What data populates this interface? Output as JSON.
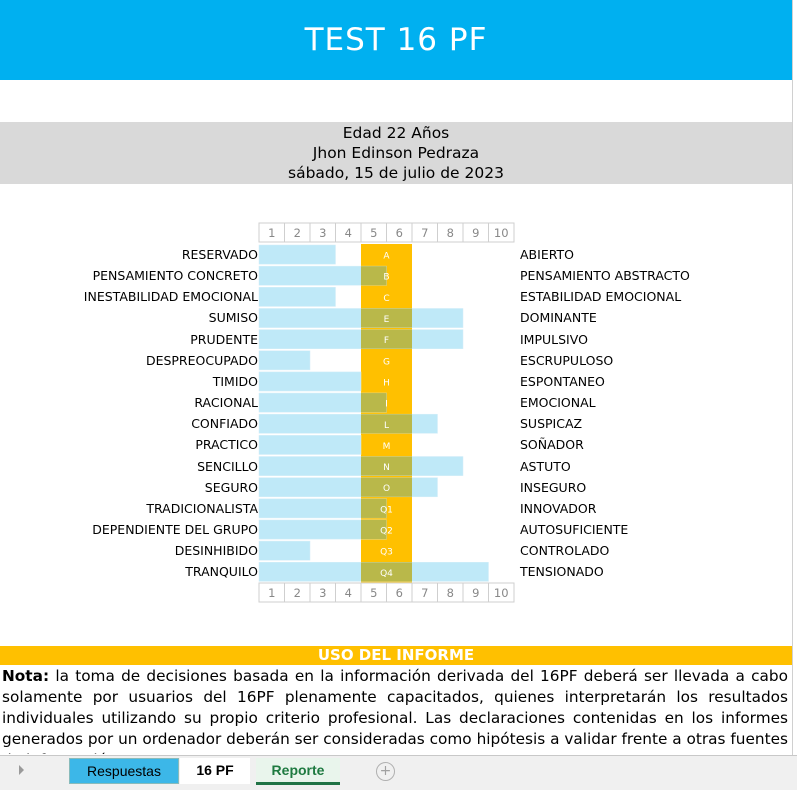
{
  "header": {
    "title": "TEST 16 PF"
  },
  "info": {
    "age": "Edad 22 Años",
    "name": "Jhon Edinson Pedraza",
    "date": "sábado, 15 de julio de 2023"
  },
  "scale": [
    "1",
    "2",
    "3",
    "4",
    "5",
    "6",
    "7",
    "8",
    "9",
    "10"
  ],
  "colors": {
    "bar": "#bfe9f8",
    "band": "#ffc000",
    "overlap": "#b9b84a",
    "header": "#00b0f0"
  },
  "factors": [
    {
      "code": "A",
      "left": "RESERVADO",
      "right": "ABIERTO",
      "score": 3
    },
    {
      "code": "B",
      "left": "PENSAMIENTO CONCRETO",
      "right": "PENSAMIENTO ABSTRACTO",
      "score": 5
    },
    {
      "code": "C",
      "left": "INESTABILIDAD EMOCIONAL",
      "right": "ESTABILIDAD EMOCIONAL",
      "score": 3
    },
    {
      "code": "E",
      "left": "SUMISO",
      "right": "DOMINANTE",
      "score": 8
    },
    {
      "code": "F",
      "left": "PRUDENTE",
      "right": "IMPULSIVO",
      "score": 8
    },
    {
      "code": "G",
      "left": "DESPREOCUPADO",
      "right": "ESCRUPULOSO",
      "score": 2
    },
    {
      "code": "H",
      "left": "TIMIDO",
      "right": "ESPONTANEO",
      "score": 4
    },
    {
      "code": "I",
      "left": "RACIONAL",
      "right": "EMOCIONAL",
      "score": 5
    },
    {
      "code": "L",
      "left": "CONFIADO",
      "right": "SUSPICAZ",
      "score": 7
    },
    {
      "code": "M",
      "left": "PRACTICO",
      "right": "SOÑADOR",
      "score": 4
    },
    {
      "code": "N",
      "left": "SENCILLO",
      "right": "ASTUTO",
      "score": 8
    },
    {
      "code": "O",
      "left": "SEGURO",
      "right": "INSEGURO",
      "score": 7
    },
    {
      "code": "Q1",
      "left": "TRADICIONALISTA",
      "right": "INNOVADOR",
      "score": 5
    },
    {
      "code": "Q2",
      "left": "DEPENDIENTE DEL GRUPO",
      "right": "AUTOSUFICIENTE",
      "score": 5
    },
    {
      "code": "Q3",
      "left": "DESINHIBIDO",
      "right": "CONTROLADO",
      "score": 2
    },
    {
      "code": "Q4",
      "left": "TRANQUILO",
      "right": "TENSIONADO",
      "score": 9
    }
  ],
  "uso": {
    "title": "USO DEL INFORME"
  },
  "nota": {
    "bold": "Nota:",
    "text": " la toma de decisiones basada en la información derivada del 16PF deberá ser llevada a cabo solamente por usuarios del 16PF plenamente capacitados, quienes interpretarán los resultados individuales utilizando su propio criterio profesional. Las declaraciones contenidas en los informes generados por un ordenador deberán ser consideradas como hipótesis a validar frente a otras fuentes de información."
  },
  "tabs": {
    "t1": "Respuestas",
    "t2": "16 PF",
    "t3": "Reporte",
    "add": "+"
  }
}
